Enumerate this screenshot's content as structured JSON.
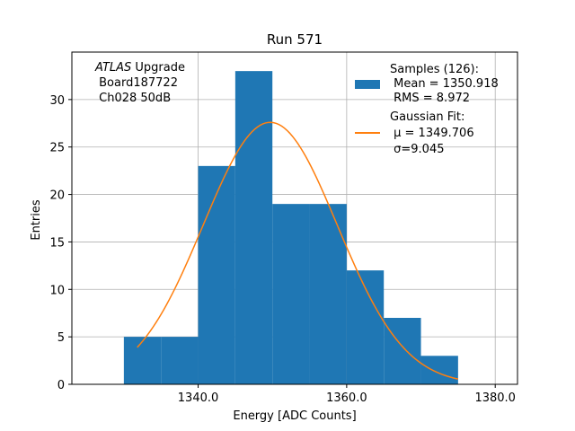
{
  "chart_data": {
    "type": "bar",
    "title": "Run 571",
    "xlabel": "Energy [ADC Counts]",
    "ylabel": "Entries",
    "xlim": [
      1323,
      1383
    ],
    "ylim": [
      0,
      35
    ],
    "x_ticks": [
      1340,
      1360,
      1380
    ],
    "x_tick_labels": [
      "1340.0",
      "1360.0",
      "1380.0"
    ],
    "y_ticks": [
      0,
      5,
      10,
      15,
      20,
      25,
      30
    ],
    "y_tick_labels": [
      "0",
      "5",
      "10",
      "15",
      "20",
      "25",
      "30"
    ],
    "grid": true,
    "bin_edges": [
      1330,
      1335,
      1340,
      1345,
      1350,
      1355,
      1360,
      1365,
      1370,
      1375
    ],
    "values": [
      5,
      5,
      23,
      33,
      19,
      19,
      12,
      7,
      3
    ],
    "histogram_color": "#1f77b4",
    "fit": {
      "type": "gaussian",
      "color": "#ff7f0e",
      "amplitude": 27.6,
      "mu": 1349.706,
      "sigma": 9.045,
      "x_range": [
        1331.8,
        1375
      ]
    },
    "annotation": {
      "italic": "ATLAS",
      "line1_rest": " Upgrade",
      "line2": " Board187722",
      "line3": " Ch028 50dB"
    },
    "legend": {
      "placement": "top-right",
      "entries": [
        {
          "label_lines": [
            "Samples (126):",
            " Mean = 1350.918",
            " RMS = 8.972"
          ],
          "marker": "patch",
          "color": "#1f77b4"
        },
        {
          "label_lines": [
            "Gaussian Fit:",
            " μ = 1349.706",
            " σ=9.045"
          ],
          "marker": "line",
          "color": "#ff7f0e"
        }
      ]
    }
  }
}
